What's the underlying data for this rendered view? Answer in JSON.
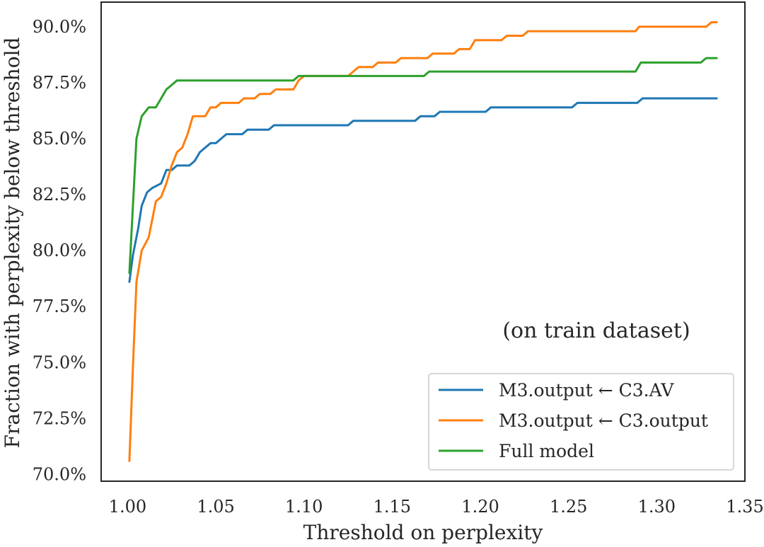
{
  "chart_data": {
    "type": "line",
    "title": "",
    "xlabel": "Threshold on perplexity",
    "ylabel": "Fraction with perplexity below threshold",
    "xlim": [
      0.985,
      1.35
    ],
    "ylim": [
      69.7,
      91.1
    ],
    "x_ticks": [
      1.0,
      1.05,
      1.1,
      1.15,
      1.2,
      1.25,
      1.3,
      1.35
    ],
    "x_tick_labels": [
      "1.00",
      "1.05",
      "1.10",
      "1.15",
      "1.20",
      "1.25",
      "1.30",
      "1.35"
    ],
    "y_ticks": [
      70.0,
      72.5,
      75.0,
      77.5,
      80.0,
      82.5,
      85.0,
      87.5,
      90.0
    ],
    "y_tick_labels": [
      "70.0%",
      "72.5%",
      "75.0%",
      "77.5%",
      "80.0%",
      "82.5%",
      "85.0%",
      "87.5%",
      "90.0%"
    ],
    "y_unit": "%",
    "grid": false,
    "legend_position": "lower-right",
    "annotation": "(on train dataset)",
    "series": [
      {
        "name": "M3.output ← C3.AV",
        "color": "#1f77b4",
        "points": [
          [
            1.001,
            78.6
          ],
          [
            1.003,
            79.8
          ],
          [
            1.006,
            81.0
          ],
          [
            1.008,
            82.0
          ],
          [
            1.011,
            82.6
          ],
          [
            1.014,
            82.8
          ],
          [
            1.019,
            83.0
          ],
          [
            1.022,
            83.6
          ],
          [
            1.025,
            83.6
          ],
          [
            1.028,
            83.8
          ],
          [
            1.035,
            83.8
          ],
          [
            1.038,
            84.0
          ],
          [
            1.041,
            84.4
          ],
          [
            1.044,
            84.6
          ],
          [
            1.047,
            84.8
          ],
          [
            1.05,
            84.8
          ],
          [
            1.053,
            85.0
          ],
          [
            1.056,
            85.2
          ],
          [
            1.065,
            85.2
          ],
          [
            1.068,
            85.4
          ],
          [
            1.08,
            85.4
          ],
          [
            1.083,
            85.6
          ],
          [
            1.125,
            85.6
          ],
          [
            1.128,
            85.8
          ],
          [
            1.163,
            85.8
          ],
          [
            1.166,
            86.0
          ],
          [
            1.174,
            86.0
          ],
          [
            1.177,
            86.2
          ],
          [
            1.203,
            86.2
          ],
          [
            1.206,
            86.4
          ],
          [
            1.252,
            86.4
          ],
          [
            1.255,
            86.6
          ],
          [
            1.289,
            86.6
          ],
          [
            1.292,
            86.8
          ],
          [
            1.334,
            86.8
          ]
        ]
      },
      {
        "name": "M3.output ← C3.output",
        "color": "#ff7f0e",
        "points": [
          [
            1.001,
            70.6
          ],
          [
            1.003,
            74.8
          ],
          [
            1.005,
            78.6
          ],
          [
            1.008,
            80.0
          ],
          [
            1.012,
            80.6
          ],
          [
            1.016,
            82.2
          ],
          [
            1.019,
            82.4
          ],
          [
            1.022,
            83.0
          ],
          [
            1.025,
            83.8
          ],
          [
            1.028,
            84.4
          ],
          [
            1.031,
            84.6
          ],
          [
            1.034,
            85.2
          ],
          [
            1.037,
            86.0
          ],
          [
            1.044,
            86.0
          ],
          [
            1.047,
            86.4
          ],
          [
            1.05,
            86.4
          ],
          [
            1.053,
            86.6
          ],
          [
            1.063,
            86.6
          ],
          [
            1.066,
            86.8
          ],
          [
            1.072,
            86.8
          ],
          [
            1.075,
            87.0
          ],
          [
            1.081,
            87.0
          ],
          [
            1.084,
            87.2
          ],
          [
            1.094,
            87.2
          ],
          [
            1.097,
            87.6
          ],
          [
            1.1,
            87.8
          ],
          [
            1.125,
            87.8
          ],
          [
            1.128,
            88.0
          ],
          [
            1.131,
            88.2
          ],
          [
            1.139,
            88.2
          ],
          [
            1.142,
            88.4
          ],
          [
            1.152,
            88.4
          ],
          [
            1.155,
            88.6
          ],
          [
            1.17,
            88.6
          ],
          [
            1.173,
            88.8
          ],
          [
            1.185,
            88.8
          ],
          [
            1.188,
            89.0
          ],
          [
            1.194,
            89.0
          ],
          [
            1.197,
            89.4
          ],
          [
            1.212,
            89.4
          ],
          [
            1.215,
            89.6
          ],
          [
            1.224,
            89.6
          ],
          [
            1.227,
            89.8
          ],
          [
            1.288,
            89.8
          ],
          [
            1.29,
            90.0
          ],
          [
            1.328,
            90.0
          ],
          [
            1.331,
            90.2
          ],
          [
            1.334,
            90.2
          ]
        ]
      },
      {
        "name": "Full model",
        "color": "#2ca02c",
        "points": [
          [
            1.001,
            79.0
          ],
          [
            1.003,
            82.0
          ],
          [
            1.005,
            85.0
          ],
          [
            1.008,
            86.0
          ],
          [
            1.012,
            86.4
          ],
          [
            1.016,
            86.4
          ],
          [
            1.022,
            87.2
          ],
          [
            1.025,
            87.4
          ],
          [
            1.028,
            87.6
          ],
          [
            1.094,
            87.6
          ],
          [
            1.097,
            87.8
          ],
          [
            1.168,
            87.8
          ],
          [
            1.171,
            88.0
          ],
          [
            1.288,
            88.0
          ],
          [
            1.291,
            88.4
          ],
          [
            1.325,
            88.4
          ],
          [
            1.328,
            88.6
          ],
          [
            1.334,
            88.6
          ]
        ]
      }
    ]
  }
}
